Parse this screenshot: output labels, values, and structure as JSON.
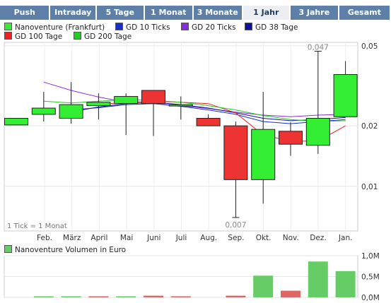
{
  "tabs": [
    {
      "label": "Push",
      "active": false
    },
    {
      "label": "Intraday",
      "active": false
    },
    {
      "label": "5 Tage",
      "active": false
    },
    {
      "label": "1 Monat",
      "active": false
    },
    {
      "label": "3 Monate",
      "active": false
    },
    {
      "label": "1 Jahr",
      "active": true
    },
    {
      "label": "3 Jahre",
      "active": false
    },
    {
      "label": "Gesamt",
      "active": false
    }
  ],
  "legend": [
    {
      "label": "Nanoventure (Frankfurt)",
      "color": "#33ee33"
    },
    {
      "label": "GD 10 Ticks",
      "color": "#1530c8"
    },
    {
      "label": "GD 20 Ticks",
      "color": "#8a2be2"
    },
    {
      "label": "GD 38 Tage",
      "color": "#1010a0"
    },
    {
      "label": "GD 100 Tage",
      "color": "#ee2222"
    },
    {
      "label": "GD 200 Tage",
      "color": "#22cc22"
    }
  ],
  "tick_note": "1 Tick = 1 Monat",
  "volume_legend": {
    "label": "Nanoventure Volumen in Euro",
    "color": "#66cc66"
  },
  "chart_data": [
    {
      "type": "candlestick",
      "categories": [
        "Feb.",
        "März",
        "April",
        "Mai",
        "Juni",
        "Juli",
        "Aug.",
        "Sep.",
        "Okt.",
        "Nov.",
        "Dez.",
        "Jan."
      ],
      "y_ticks": [
        "0,05",
        "0,02",
        "0,01"
      ],
      "y_scale": "log",
      "ylim": [
        0.006,
        0.052
      ],
      "candles": [
        {
          "open": 0.0202,
          "close": 0.0218,
          "high": 0.0218,
          "low": 0.0202
        },
        {
          "open": 0.0228,
          "close": 0.0245,
          "high": 0.0295,
          "low": 0.021
        },
        {
          "open": 0.0218,
          "close": 0.0255,
          "high": 0.033,
          "low": 0.0205
        },
        {
          "open": 0.0252,
          "close": 0.0262,
          "high": 0.029,
          "low": 0.0215
        },
        {
          "open": 0.0258,
          "close": 0.028,
          "high": 0.029,
          "low": 0.018
        },
        {
          "open": 0.03,
          "close": 0.0258,
          "high": 0.03,
          "low": 0.0178
        },
        {
          "open": 0.0255,
          "close": 0.0255,
          "high": 0.028,
          "low": 0.0215
        },
        {
          "open": 0.0218,
          "close": 0.02,
          "high": 0.0228,
          "low": 0.02
        },
        {
          "open": 0.02,
          "close": 0.0108,
          "high": 0.021,
          "low": 0.007
        },
        {
          "open": 0.0108,
          "close": 0.0192,
          "high": 0.0295,
          "low": 0.0082
        },
        {
          "open": 0.0188,
          "close": 0.0162,
          "high": 0.0208,
          "low": 0.0142
        },
        {
          "open": 0.016,
          "close": 0.0218,
          "high": 0.047,
          "low": 0.0145
        },
        {
          "open": 0.0222,
          "close": 0.036,
          "high": 0.042,
          "low": 0.0222
        }
      ],
      "moving_averages": [
        {
          "name": "GD 10 Ticks",
          "color": "#1530c8",
          "values": [
            null,
            null,
            0.024,
            0.0246,
            0.0255,
            0.0258,
            0.025,
            0.024,
            0.0228,
            0.021,
            0.0205,
            0.021,
            0.0215
          ]
        },
        {
          "name": "GD 20 Ticks",
          "color": "#8a2be2",
          "values": [
            null,
            0.033,
            0.03,
            0.0278,
            0.0262,
            0.0258,
            0.0252,
            0.0244,
            0.0234,
            0.0226,
            0.0222,
            0.0226,
            0.0228
          ]
        },
        {
          "name": "GD 38 Tage",
          "color": "#1010a0",
          "values": [
            null,
            null,
            0.0235,
            0.0248,
            0.0258,
            0.0262,
            0.0255,
            0.0245,
            0.0232,
            0.0218,
            0.0212,
            0.0215,
            0.022
          ]
        },
        {
          "name": "GD 100 Tage",
          "color": "#ee2222",
          "values": [
            null,
            null,
            null,
            0.0255,
            0.0262,
            0.0265,
            0.0262,
            0.0258,
            0.0232,
            0.018,
            0.0168,
            0.0168,
            0.02
          ]
        },
        {
          "name": "GD 200 Tage",
          "color": "#22cc22",
          "values": [
            null,
            0.0265,
            0.026,
            0.0265,
            0.027,
            0.0268,
            0.0262,
            0.0252,
            0.024,
            0.0225,
            0.0215,
            0.021,
            0.0212
          ]
        }
      ],
      "annotations": [
        {
          "text": "0,047",
          "candle": 11
        },
        {
          "text": "0,007",
          "candle": 8
        }
      ]
    },
    {
      "type": "bar",
      "title": "Nanoventure Volumen in Euro",
      "y_ticks": [
        "1,0M",
        "0,5M",
        "0,0M"
      ],
      "ylim": [
        0,
        1.0
      ],
      "values": [
        0.0,
        0.01,
        0.01,
        0.01,
        0.02,
        0.04,
        0.02,
        0.0,
        0.04,
        0.52,
        0.16,
        0.86,
        0.63
      ],
      "colors": [
        "#66cc66",
        "#66cc66",
        "#66cc66",
        "#dd6666",
        "#66cc66",
        "#dd6666",
        "#dd6666",
        "#66cc66",
        "#dd6666",
        "#66cc66",
        "#dd6666",
        "#66cc66",
        "#66cc66"
      ]
    }
  ]
}
